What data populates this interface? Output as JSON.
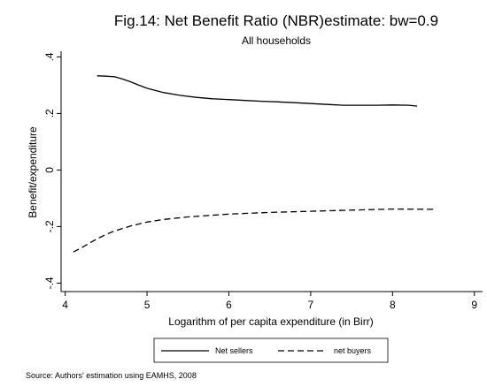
{
  "chart_data": {
    "type": "line",
    "title": "Fig.14: Net Benefit Ratio (NBR)estimate: bw=0.9",
    "subtitle": "All households",
    "xlabel": "Logarithm of per capita expenditure (in Birr)",
    "ylabel": "Benefit/expenditure",
    "xlim": [
      3.95,
      9.1
    ],
    "ylim": [
      -0.43,
      0.42
    ],
    "x_ticks": [
      4,
      5,
      6,
      7,
      8,
      9
    ],
    "y_ticks": [
      -0.4,
      -0.2,
      0,
      0.2,
      0.4
    ],
    "x_tick_labels": [
      "4",
      "5",
      "6",
      "7",
      "8",
      "9"
    ],
    "y_tick_labels": [
      "-.4",
      "-.2",
      "0",
      ".2",
      ".4"
    ],
    "grid": false,
    "legend_position": "bottom",
    "series": [
      {
        "name": "Net sellers",
        "style": "solid",
        "color": "#000000",
        "x": [
          4.39,
          4.5,
          4.6,
          4.7,
          4.8,
          4.9,
          5.0,
          5.2,
          5.4,
          5.6,
          5.8,
          6.0,
          6.2,
          6.4,
          6.6,
          6.8,
          7.0,
          7.2,
          7.4,
          7.6,
          7.8,
          8.0,
          8.2,
          8.3
        ],
        "values": [
          0.333,
          0.332,
          0.33,
          0.322,
          0.312,
          0.3,
          0.289,
          0.274,
          0.264,
          0.257,
          0.252,
          0.249,
          0.246,
          0.243,
          0.241,
          0.238,
          0.235,
          0.232,
          0.229,
          0.229,
          0.229,
          0.23,
          0.229,
          0.226
        ]
      },
      {
        "name": "net buyers",
        "style": "dashed",
        "color": "#000000",
        "x": [
          4.1,
          4.2,
          4.3,
          4.4,
          4.5,
          4.6,
          4.8,
          5.0,
          5.2,
          5.5,
          5.8,
          6.0,
          6.5,
          7.0,
          7.5,
          8.0,
          8.5
        ],
        "values": [
          -0.29,
          -0.275,
          -0.258,
          -0.242,
          -0.228,
          -0.216,
          -0.198,
          -0.184,
          -0.175,
          -0.166,
          -0.16,
          -0.156,
          -0.15,
          -0.146,
          -0.142,
          -0.138,
          -0.139
        ]
      }
    ]
  },
  "source_note": "Source: Authors' estimation using EAMHS, 2008"
}
